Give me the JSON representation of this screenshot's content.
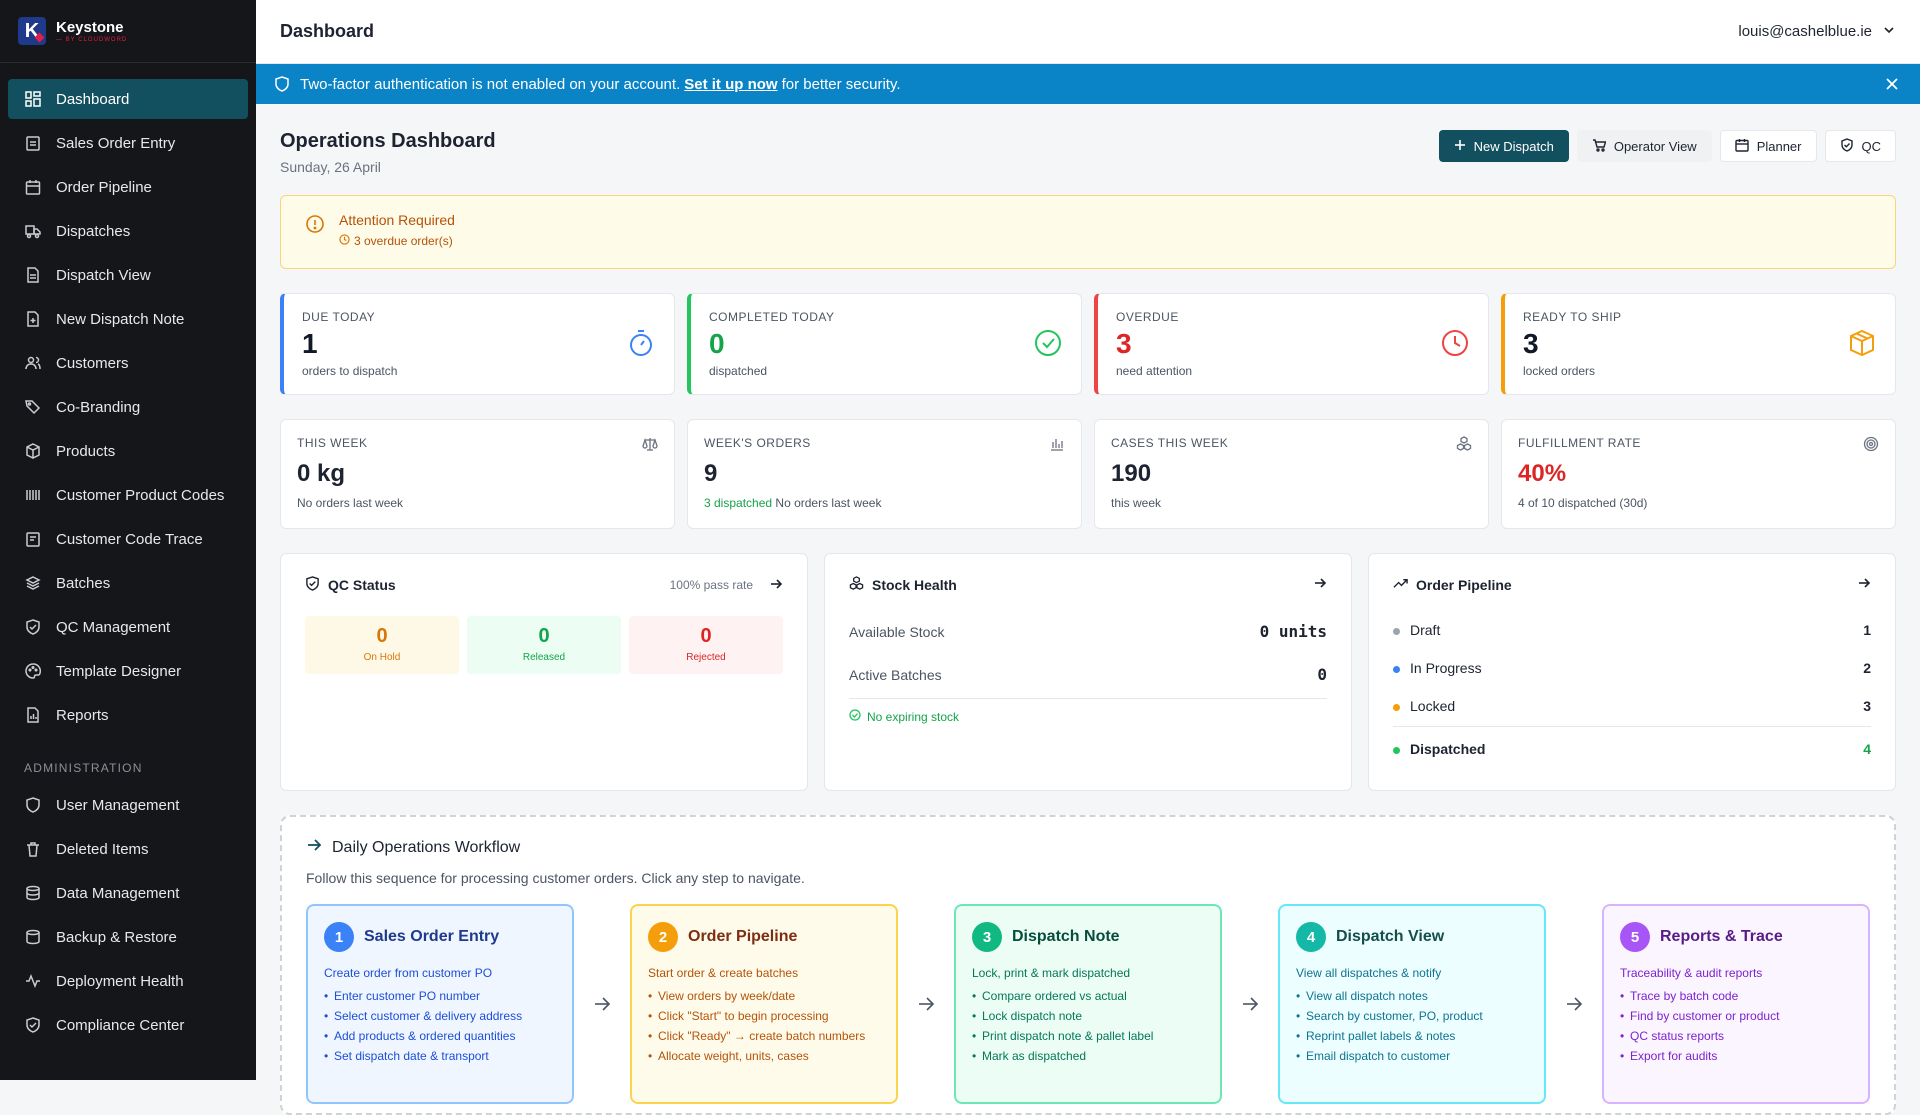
{
  "brand": {
    "name": "Keystone",
    "tagline": "— BY CLOUDWORD"
  },
  "header": {
    "title": "Dashboard",
    "user": "louis@cashelblue.ie"
  },
  "banner": {
    "text_before": "Two-factor authentication is not enabled on your account.",
    "link": "Set it up now",
    "text_after": "for better security."
  },
  "sidebar": {
    "items": [
      {
        "label": "Dashboard",
        "icon": "dashboard-icon",
        "active": true
      },
      {
        "label": "Sales Order Entry",
        "icon": "clipboard-icon"
      },
      {
        "label": "Order Pipeline",
        "icon": "calendar-icon"
      },
      {
        "label": "Dispatches",
        "icon": "truck-icon"
      },
      {
        "label": "Dispatch View",
        "icon": "document-icon"
      },
      {
        "label": "New Dispatch Note",
        "icon": "file-plus-icon"
      },
      {
        "label": "Customers",
        "icon": "users-icon"
      },
      {
        "label": "Co-Branding",
        "icon": "tags-icon"
      },
      {
        "label": "Products",
        "icon": "package-icon"
      },
      {
        "label": "Customer Product Codes",
        "icon": "barcode-icon"
      },
      {
        "label": "Customer Code Trace",
        "icon": "clipboard-search-icon"
      },
      {
        "label": "Batches",
        "icon": "layers-icon"
      },
      {
        "label": "QC Management",
        "icon": "shield-check-icon"
      },
      {
        "label": "Template Designer",
        "icon": "palette-icon"
      },
      {
        "label": "Reports",
        "icon": "report-icon"
      }
    ],
    "admin_title": "ADMINISTRATION",
    "admin_items": [
      {
        "label": "User Management",
        "icon": "shield-icon"
      },
      {
        "label": "Deleted Items",
        "icon": "trash-icon"
      },
      {
        "label": "Data Management",
        "icon": "database-icon"
      },
      {
        "label": "Backup & Restore",
        "icon": "archive-icon"
      },
      {
        "label": "Deployment Health",
        "icon": "activity-icon"
      },
      {
        "label": "Compliance Center",
        "icon": "shield-icon"
      }
    ]
  },
  "page": {
    "title": "Operations Dashboard",
    "date": "Sunday, 26 April"
  },
  "actions": {
    "new_dispatch": "New Dispatch",
    "operator_view": "Operator View",
    "planner": "Planner",
    "qc": "QC"
  },
  "alert": {
    "title": "Attention Required",
    "detail": "3 overdue order(s)"
  },
  "kpis": [
    {
      "label": "DUE TODAY",
      "value": "1",
      "sub": "orders to dispatch",
      "color": "#3b82f6",
      "icon": "stopwatch-icon"
    },
    {
      "label": "COMPLETED TODAY",
      "value": "0",
      "sub": "dispatched",
      "color": "#16a34a",
      "icon": "check-circle-icon"
    },
    {
      "label": "OVERDUE",
      "value": "3",
      "sub": "need attention",
      "color": "#dc2626",
      "icon": "clock-icon"
    },
    {
      "label": "READY TO SHIP",
      "value": "3",
      "sub": "locked orders",
      "color": "#111827",
      "icon": "package-icon"
    }
  ],
  "stats": [
    {
      "label": "THIS WEEK",
      "value": "0 kg",
      "sub": "No orders last week",
      "icon": "scale-icon"
    },
    {
      "label": "WEEK'S ORDERS",
      "value": "9",
      "sub_green": "3 dispatched",
      "sub": "No orders last week",
      "icon": "bar-chart-icon"
    },
    {
      "label": "CASES THIS WEEK",
      "value": "190",
      "sub": "this week",
      "icon": "boxes-icon"
    },
    {
      "label": "FULFILLMENT RATE",
      "value": "40%",
      "sub": "4 of 10 dispatched (30d)",
      "icon": "target-icon"
    }
  ],
  "qc": {
    "title": "QC Status",
    "pass_rate": "100% pass rate",
    "on_hold_n": "0",
    "on_hold": "On Hold",
    "released_n": "0",
    "released": "Released",
    "rejected_n": "0",
    "rejected": "Rejected"
  },
  "stock": {
    "title": "Stock Health",
    "available_label": "Available Stock",
    "available_value": "0 units",
    "batches_label": "Active Batches",
    "batches_value": "0",
    "note": "No expiring stock"
  },
  "pipeline": {
    "title": "Order Pipeline",
    "rows": [
      {
        "label": "Draft",
        "value": "1",
        "color": "#9ca3af"
      },
      {
        "label": "In Progress",
        "value": "2",
        "color": "#3b82f6"
      },
      {
        "label": "Locked",
        "value": "3",
        "color": "#f59e0b"
      },
      {
        "label": "Dispatched",
        "value": "4",
        "color": "#22c55e"
      }
    ]
  },
  "workflow": {
    "title": "Daily Operations Workflow",
    "subtitle": "Follow this sequence for processing customer orders. Click any step to navigate.",
    "steps": [
      {
        "n": "1",
        "title": "Sales Order Entry",
        "desc": "Create order from customer PO",
        "items": [
          "Enter customer PO number",
          "Select customer & delivery address",
          "Add products & ordered quantities",
          "Set dispatch date & transport"
        ]
      },
      {
        "n": "2",
        "title": "Order Pipeline",
        "desc": "Start order & create batches",
        "items": [
          "View orders by week/date",
          "Click \"Start\" to begin processing",
          "Click \"Ready\" → create batch numbers",
          "Allocate weight, units, cases"
        ]
      },
      {
        "n": "3",
        "title": "Dispatch Note",
        "desc": "Lock, print & mark dispatched",
        "items": [
          "Compare ordered vs actual",
          "Lock dispatch note",
          "Print dispatch note & pallet label",
          "Mark as dispatched"
        ]
      },
      {
        "n": "4",
        "title": "Dispatch View",
        "desc": "View all dispatches & notify",
        "items": [
          "View all dispatch notes",
          "Search by customer, PO, product",
          "Reprint pallet labels & notes",
          "Email dispatch to customer"
        ]
      },
      {
        "n": "5",
        "title": "Reports & Trace",
        "desc": "Traceability & audit reports",
        "items": [
          "Trace by batch code",
          "Find by customer or product",
          "QC status reports",
          "Export for audits"
        ]
      }
    ]
  }
}
